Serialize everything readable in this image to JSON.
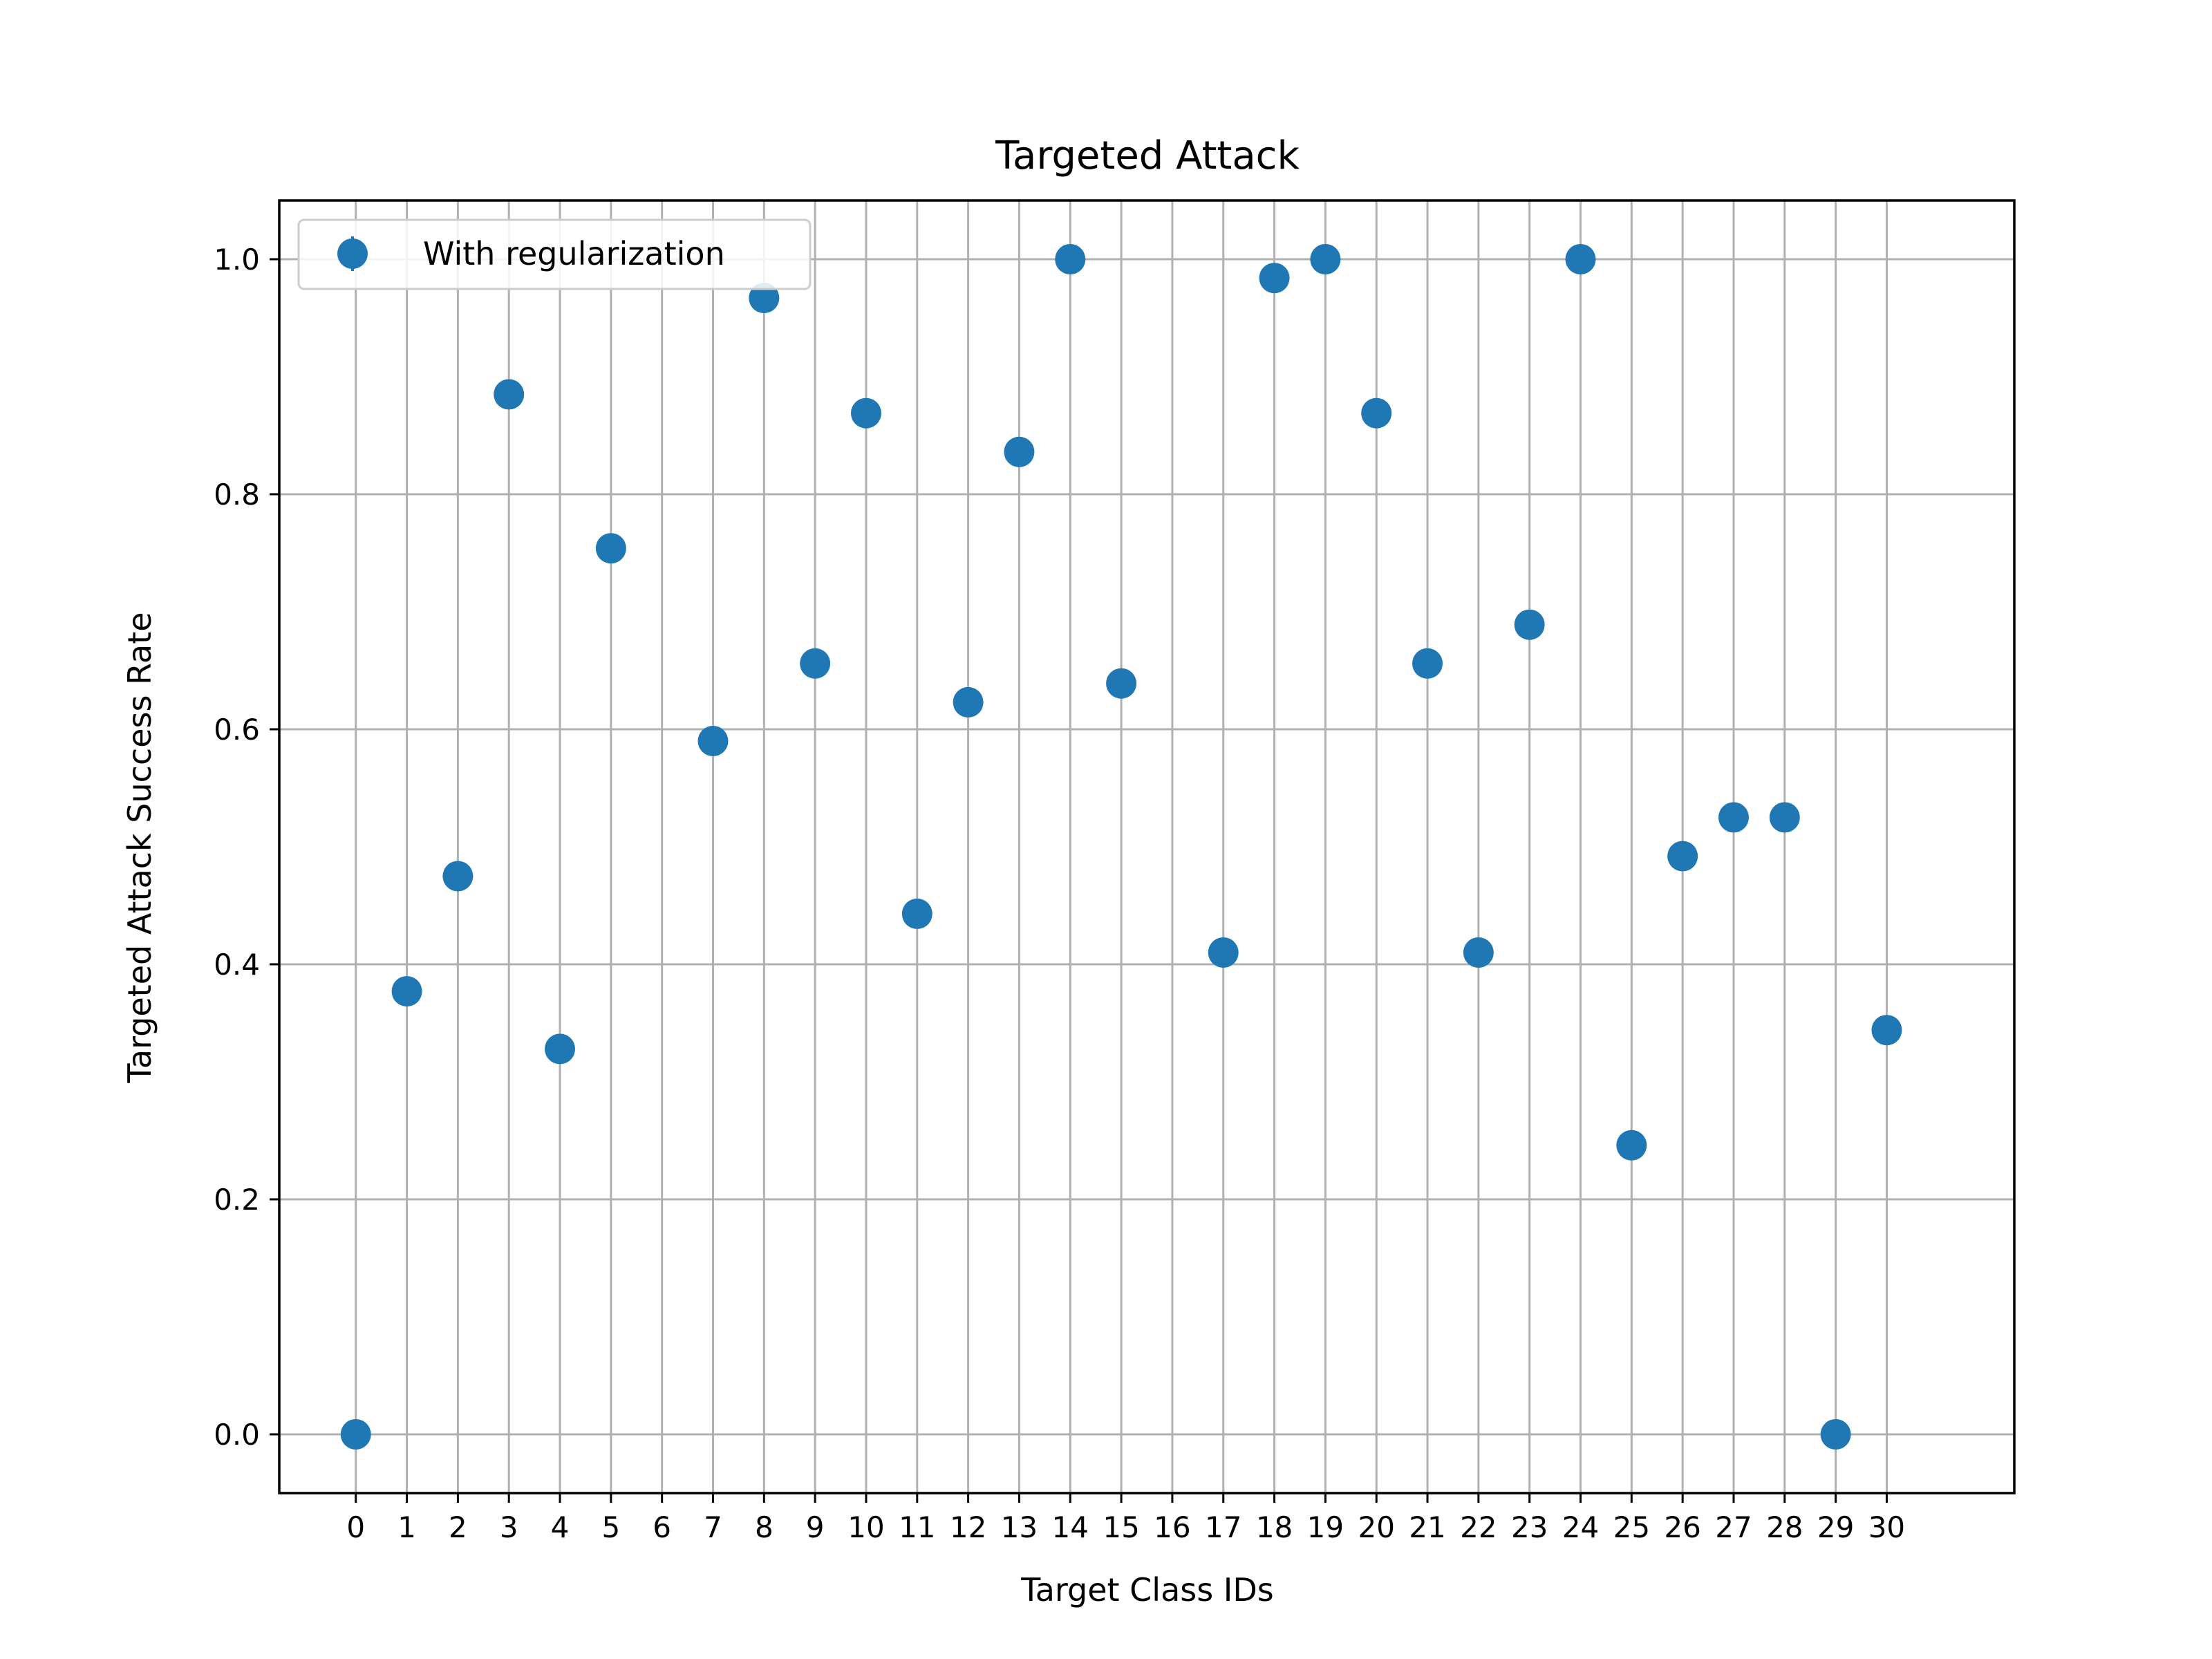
{
  "chart_data": {
    "type": "scatter",
    "title": "Targeted Attack",
    "xlabel": "Target Class IDs",
    "ylabel": "Targeted Attack Success Rate",
    "xlim": [
      -1.5,
      32.5
    ],
    "ylim": [
      -0.05,
      1.05
    ],
    "grid": true,
    "legend_position": "top-left",
    "x_ticks": [
      0,
      1,
      2,
      3,
      4,
      5,
      6,
      7,
      8,
      9,
      10,
      11,
      12,
      13,
      14,
      15,
      16,
      17,
      18,
      19,
      20,
      21,
      22,
      23,
      24,
      25,
      26,
      27,
      28,
      29,
      30
    ],
    "x_tick_labels": [
      "0",
      "1",
      "2",
      "3",
      "4",
      "5",
      "6",
      "7",
      "8",
      "9",
      "10",
      "11",
      "12",
      "13",
      "14",
      "15",
      "16",
      "17",
      "18",
      "19",
      "20",
      "21",
      "22",
      "23",
      "24",
      "25",
      "26",
      "27",
      "28",
      "29",
      "30"
    ],
    "y_ticks": [
      0.0,
      0.2,
      0.4,
      0.6,
      0.8,
      1.0
    ],
    "y_tick_labels": [
      "0.0",
      "0.2",
      "0.4",
      "0.6",
      "0.8",
      "1.0"
    ],
    "series": [
      {
        "name": "With regularization",
        "color": "#1f77b4",
        "points": [
          {
            "x": 0,
            "y": 0.0
          },
          {
            "x": 1,
            "y": 0.377
          },
          {
            "x": 2,
            "y": 0.475
          },
          {
            "x": 3,
            "y": 0.885
          },
          {
            "x": 4,
            "y": 0.328
          },
          {
            "x": 5,
            "y": 0.754
          },
          {
            "x": 7,
            "y": 0.59
          },
          {
            "x": 8,
            "y": 0.967
          },
          {
            "x": 9,
            "y": 0.656
          },
          {
            "x": 10,
            "y": 0.869
          },
          {
            "x": 11,
            "y": 0.443
          },
          {
            "x": 12,
            "y": 0.623
          },
          {
            "x": 13,
            "y": 0.836
          },
          {
            "x": 14,
            "y": 1.0
          },
          {
            "x": 15,
            "y": 0.639
          },
          {
            "x": 17,
            "y": 0.41
          },
          {
            "x": 18,
            "y": 0.984
          },
          {
            "x": 19,
            "y": 1.0
          },
          {
            "x": 20,
            "y": 0.869
          },
          {
            "x": 21,
            "y": 0.656
          },
          {
            "x": 22,
            "y": 0.41
          },
          {
            "x": 23,
            "y": 0.689
          },
          {
            "x": 24,
            "y": 1.0
          },
          {
            "x": 25,
            "y": 0.246
          },
          {
            "x": 26,
            "y": 0.492
          },
          {
            "x": 27,
            "y": 0.525
          },
          {
            "x": 28,
            "y": 0.525
          },
          {
            "x": 29,
            "y": 0.0
          },
          {
            "x": 30,
            "y": 0.344
          }
        ]
      }
    ]
  }
}
